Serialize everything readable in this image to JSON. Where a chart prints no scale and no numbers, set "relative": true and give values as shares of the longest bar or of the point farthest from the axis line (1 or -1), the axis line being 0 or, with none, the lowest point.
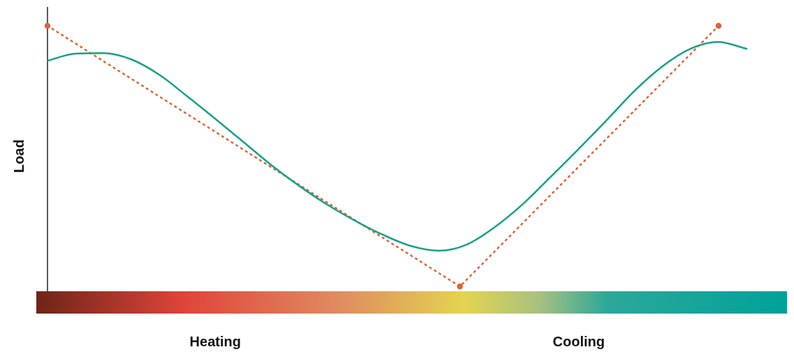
{
  "chart_data": {
    "type": "line",
    "relative": true,
    "ylabel": "Load",
    "legend": false,
    "grid": false,
    "categories": [
      null,
      null,
      null,
      null,
      null,
      null,
      null,
      null,
      null,
      null,
      null,
      null,
      null,
      null,
      null,
      null,
      null,
      null,
      null,
      null,
      null,
      null,
      null,
      null,
      "Heating",
      null,
      null,
      null,
      null,
      null,
      null,
      null,
      null,
      null,
      null,
      null,
      null,
      null,
      null,
      null,
      null,
      null,
      null,
      null,
      null,
      null,
      null,
      null,
      null,
      null,
      null,
      null,
      null,
      null,
      null,
      null,
      null,
      null,
      null,
      null,
      null,
      null,
      null,
      null,
      null,
      null,
      null,
      null,
      null,
      null,
      null,
      null,
      null,
      null,
      null,
      null,
      "Cooling",
      null,
      null,
      null,
      null,
      null,
      null,
      null,
      null,
      null,
      null,
      null,
      null,
      null,
      null,
      null,
      null,
      null,
      null,
      null,
      null,
      null,
      null,
      null,
      null
    ],
    "series": [
      {
        "color": "#1a9e86",
        "marker": "none",
        "line_style": "solid",
        "values": [
          0.866,
          null,
          null,
          null,
          0.893,
          null,
          null,
          null,
          0.895,
          null,
          null,
          null,
          0.871,
          null,
          null,
          null,
          0.812,
          null,
          null,
          null,
          0.729,
          null,
          null,
          null,
          0.643,
          null,
          null,
          null,
          0.555,
          null,
          null,
          null,
          0.466,
          null,
          null,
          null,
          0.386,
          null,
          null,
          null,
          0.314,
          null,
          null,
          null,
          0.252,
          null,
          null,
          null,
          0.198,
          null,
          null,
          null,
          0.155,
          null,
          null,
          null,
          0.137,
          null,
          null,
          null,
          0.161,
          null,
          null,
          null,
          0.228,
          null,
          null,
          null,
          0.316,
          null,
          null,
          null,
          0.421,
          null,
          null,
          null,
          0.528,
          null,
          null,
          null,
          0.638,
          null,
          null,
          null,
          0.751,
          null,
          null,
          null,
          0.845,
          null,
          null,
          null,
          0.912,
          null,
          null,
          null,
          0.938,
          null,
          null,
          null,
          0.912
        ]
      },
      {
        "color": "#d9643a",
        "marker": "circle",
        "line_style": "dotted",
        "values": [
          1,
          null,
          null,
          null,
          null,
          null,
          null,
          null,
          null,
          null,
          null,
          null,
          null,
          null,
          null,
          null,
          null,
          null,
          null,
          null,
          null,
          null,
          null,
          null,
          null,
          null,
          null,
          null,
          null,
          null,
          null,
          null,
          null,
          null,
          null,
          null,
          null,
          null,
          null,
          null,
          null,
          null,
          null,
          null,
          null,
          null,
          null,
          null,
          null,
          null,
          null,
          null,
          null,
          null,
          null,
          null,
          null,
          null,
          null,
          0,
          null,
          null,
          null,
          null,
          null,
          null,
          null,
          null,
          null,
          null,
          null,
          null,
          null,
          null,
          null,
          null,
          null,
          null,
          null,
          null,
          null,
          null,
          null,
          null,
          null,
          null,
          null,
          null,
          null,
          null,
          null,
          null,
          null,
          null,
          null,
          null,
          1,
          null,
          null,
          null,
          null
        ]
      }
    ]
  }
}
